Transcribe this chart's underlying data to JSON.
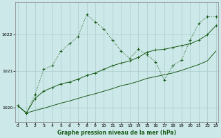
{
  "title": "Graphe pression niveau de la mer (hPa)",
  "bg_color": "#cce8e8",
  "grid_color": "#aacccc",
  "line_color": "#1a5c1a",
  "ylim": [
    1019.6,
    1022.9
  ],
  "xlim": [
    -0.3,
    23.3
  ],
  "yticks": [
    1020,
    1021,
    1022
  ],
  "xticks": [
    0,
    1,
    2,
    3,
    4,
    5,
    6,
    7,
    8,
    9,
    10,
    11,
    12,
    13,
    14,
    15,
    16,
    17,
    18,
    19,
    20,
    21,
    22,
    23
  ],
  "series1_x": [
    0,
    1,
    2,
    3,
    4,
    5,
    6,
    7,
    8,
    9,
    10,
    11,
    12,
    13,
    14,
    15,
    16,
    17,
    18,
    19,
    20,
    21,
    22,
    23
  ],
  "series1_y": [
    1020.05,
    1019.85,
    1020.35,
    1021.05,
    1021.15,
    1021.55,
    1021.75,
    1021.95,
    1022.55,
    1022.35,
    1022.15,
    1021.85,
    1021.55,
    1021.35,
    1021.6,
    1021.45,
    1021.25,
    1020.75,
    1021.15,
    1021.3,
    1021.85,
    1022.3,
    1022.5,
    1022.5
  ],
  "series2_x": [
    0,
    1,
    2,
    3,
    4,
    5,
    6,
    7,
    8,
    9,
    10,
    11,
    12,
    13,
    14,
    15,
    16,
    17,
    18,
    19,
    20,
    21,
    22,
    23
  ],
  "series2_y": [
    1020.05,
    1019.85,
    1020.25,
    1020.45,
    1020.55,
    1020.65,
    1020.7,
    1020.78,
    1020.88,
    1020.95,
    1021.05,
    1021.15,
    1021.22,
    1021.28,
    1021.38,
    1021.52,
    1021.58,
    1021.6,
    1021.65,
    1021.7,
    1021.75,
    1021.85,
    1022.0,
    1022.25
  ],
  "series3_x": [
    0,
    1,
    2,
    3,
    4,
    5,
    6,
    7,
    8,
    9,
    10,
    11,
    12,
    13,
    14,
    15,
    16,
    17,
    18,
    19,
    20,
    21,
    22,
    23
  ],
  "series3_y": [
    1020.05,
    1019.85,
    1019.92,
    1019.98,
    1020.05,
    1020.12,
    1020.18,
    1020.25,
    1020.32,
    1020.38,
    1020.45,
    1020.52,
    1020.6,
    1020.65,
    1020.72,
    1020.8,
    1020.85,
    1020.9,
    1020.95,
    1021.02,
    1021.1,
    1021.18,
    1021.28,
    1021.55
  ]
}
